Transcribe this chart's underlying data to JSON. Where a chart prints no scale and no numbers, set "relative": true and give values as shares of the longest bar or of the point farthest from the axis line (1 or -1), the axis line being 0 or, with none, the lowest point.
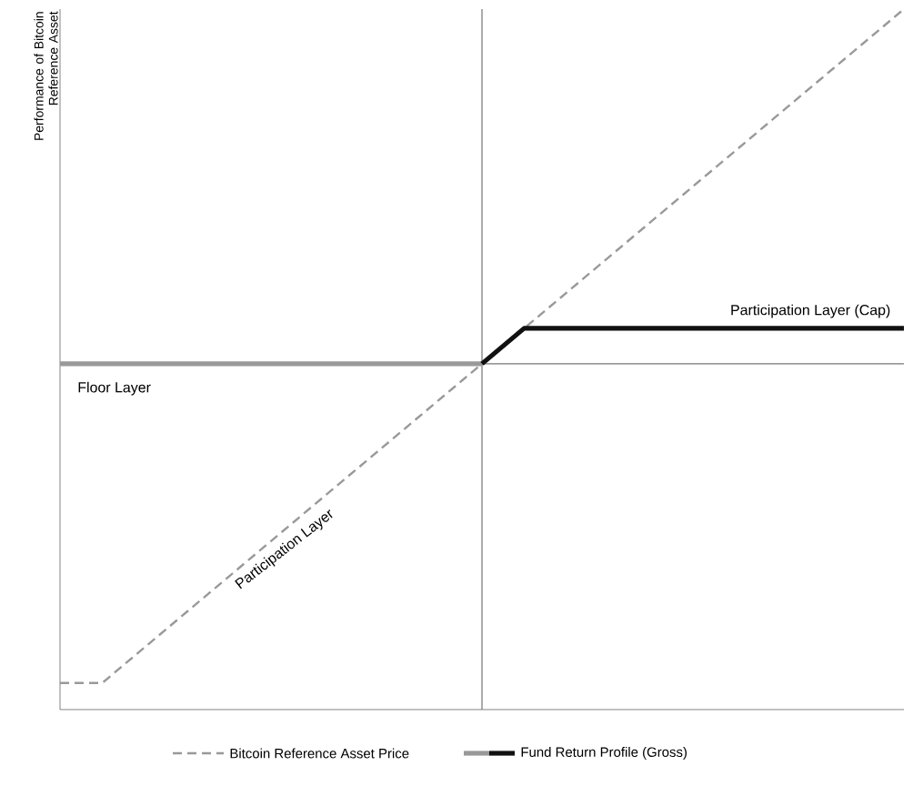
{
  "chart_data": {
    "type": "line",
    "relative": true,
    "ylabel": "Performance of Bitcoin Reference Asset",
    "categories": [
      null,
      null,
      null,
      null,
      null,
      null,
      null,
      null,
      null,
      null,
      null,
      null,
      null,
      null,
      null,
      null,
      null,
      null,
      null,
      null,
      null
    ],
    "series": [
      {
        "name": "Bitcoin Reference Asset Price",
        "color": "#999999",
        "line_style": "dashed",
        "values": [
          -0.9,
          -0.9,
          -0.8,
          -0.7,
          -0.6,
          -0.5,
          -0.4,
          -0.3,
          -0.2,
          -0.1,
          0,
          0.1,
          0.2,
          0.3,
          0.4,
          0.5,
          0.6,
          0.7,
          0.8,
          0.9,
          1.0
        ]
      },
      {
        "color": "#999999",
        "line_style": "solid",
        "values": [
          0,
          0,
          0,
          0,
          0,
          0,
          0,
          0,
          0,
          0,
          0,
          null,
          null,
          null,
          null,
          null,
          null,
          null,
          null,
          null,
          null
        ]
      },
      {
        "name": "Fund Return Profile (Gross)",
        "color": "#111111",
        "line_style": "solid",
        "values": [
          null,
          null,
          null,
          null,
          null,
          null,
          null,
          null,
          null,
          null,
          0,
          0.1,
          0.1,
          0.1,
          0.1,
          0.1,
          0.1,
          0.1,
          0.1,
          0.1,
          0.1
        ]
      }
    ],
    "ref_lines": [
      {
        "axis": "y",
        "value": 0,
        "color": "#777777"
      }
    ],
    "annotations": [
      "Floor Layer",
      "Participation Layer",
      "Participation Layer (Cap)"
    ],
    "legend": "bottom",
    "marker": "none"
  }
}
